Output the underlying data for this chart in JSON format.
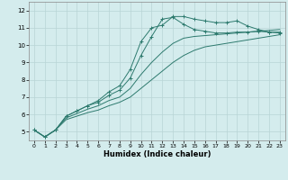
{
  "xlabel": "Humidex (Indice chaleur)",
  "background_color": "#d4eced",
  "grid_color": "#b8d4d6",
  "line_color": "#2d7a6e",
  "xlim": [
    -0.5,
    23.5
  ],
  "ylim": [
    4.5,
    12.5
  ],
  "xticks": [
    0,
    1,
    2,
    3,
    4,
    5,
    6,
    7,
    8,
    9,
    10,
    11,
    12,
    13,
    14,
    15,
    16,
    17,
    18,
    19,
    20,
    21,
    22,
    23
  ],
  "yticks": [
    5,
    6,
    7,
    8,
    9,
    10,
    11,
    12
  ],
  "series": [
    {
      "x": [
        0,
        1,
        2,
        3,
        4,
        5,
        6,
        7,
        8,
        9,
        10,
        11,
        12,
        13,
        14,
        15,
        16,
        17,
        18,
        19,
        20,
        21,
        22,
        23
      ],
      "y": [
        5.1,
        4.7,
        5.1,
        5.9,
        6.2,
        6.5,
        6.8,
        7.3,
        7.65,
        8.6,
        10.2,
        11.0,
        11.15,
        11.65,
        11.65,
        11.5,
        11.4,
        11.3,
        11.3,
        11.4,
        11.1,
        10.9,
        10.75,
        10.75
      ],
      "marker": "+"
    },
    {
      "x": [
        0,
        1,
        2,
        3,
        4,
        5,
        6,
        7,
        8,
        9,
        10,
        11,
        12,
        13,
        14,
        15,
        16,
        17,
        18,
        19,
        20,
        21,
        22,
        23
      ],
      "y": [
        5.1,
        4.7,
        5.1,
        5.9,
        6.2,
        6.5,
        6.7,
        7.1,
        7.4,
        8.1,
        9.4,
        10.5,
        11.5,
        11.6,
        11.2,
        10.9,
        10.8,
        10.7,
        10.7,
        10.75,
        10.75,
        10.8,
        10.75,
        10.7
      ],
      "marker": "+"
    },
    {
      "x": [
        0,
        1,
        2,
        3,
        4,
        5,
        6,
        7,
        8,
        9,
        10,
        11,
        12,
        13,
        14,
        15,
        16,
        17,
        18,
        19,
        20,
        21,
        22,
        23
      ],
      "y": [
        5.1,
        4.7,
        5.1,
        5.8,
        6.05,
        6.3,
        6.5,
        6.8,
        7.0,
        7.5,
        8.3,
        9.0,
        9.6,
        10.1,
        10.4,
        10.5,
        10.55,
        10.6,
        10.65,
        10.7,
        10.75,
        10.8,
        10.85,
        10.9
      ],
      "marker": null
    },
    {
      "x": [
        0,
        1,
        2,
        3,
        4,
        5,
        6,
        7,
        8,
        9,
        10,
        11,
        12,
        13,
        14,
        15,
        16,
        17,
        18,
        19,
        20,
        21,
        22,
        23
      ],
      "y": [
        5.1,
        4.7,
        5.1,
        5.7,
        5.9,
        6.1,
        6.25,
        6.5,
        6.7,
        7.0,
        7.5,
        8.0,
        8.5,
        9.0,
        9.4,
        9.7,
        9.9,
        10.0,
        10.1,
        10.2,
        10.3,
        10.4,
        10.5,
        10.6
      ],
      "marker": null
    }
  ]
}
